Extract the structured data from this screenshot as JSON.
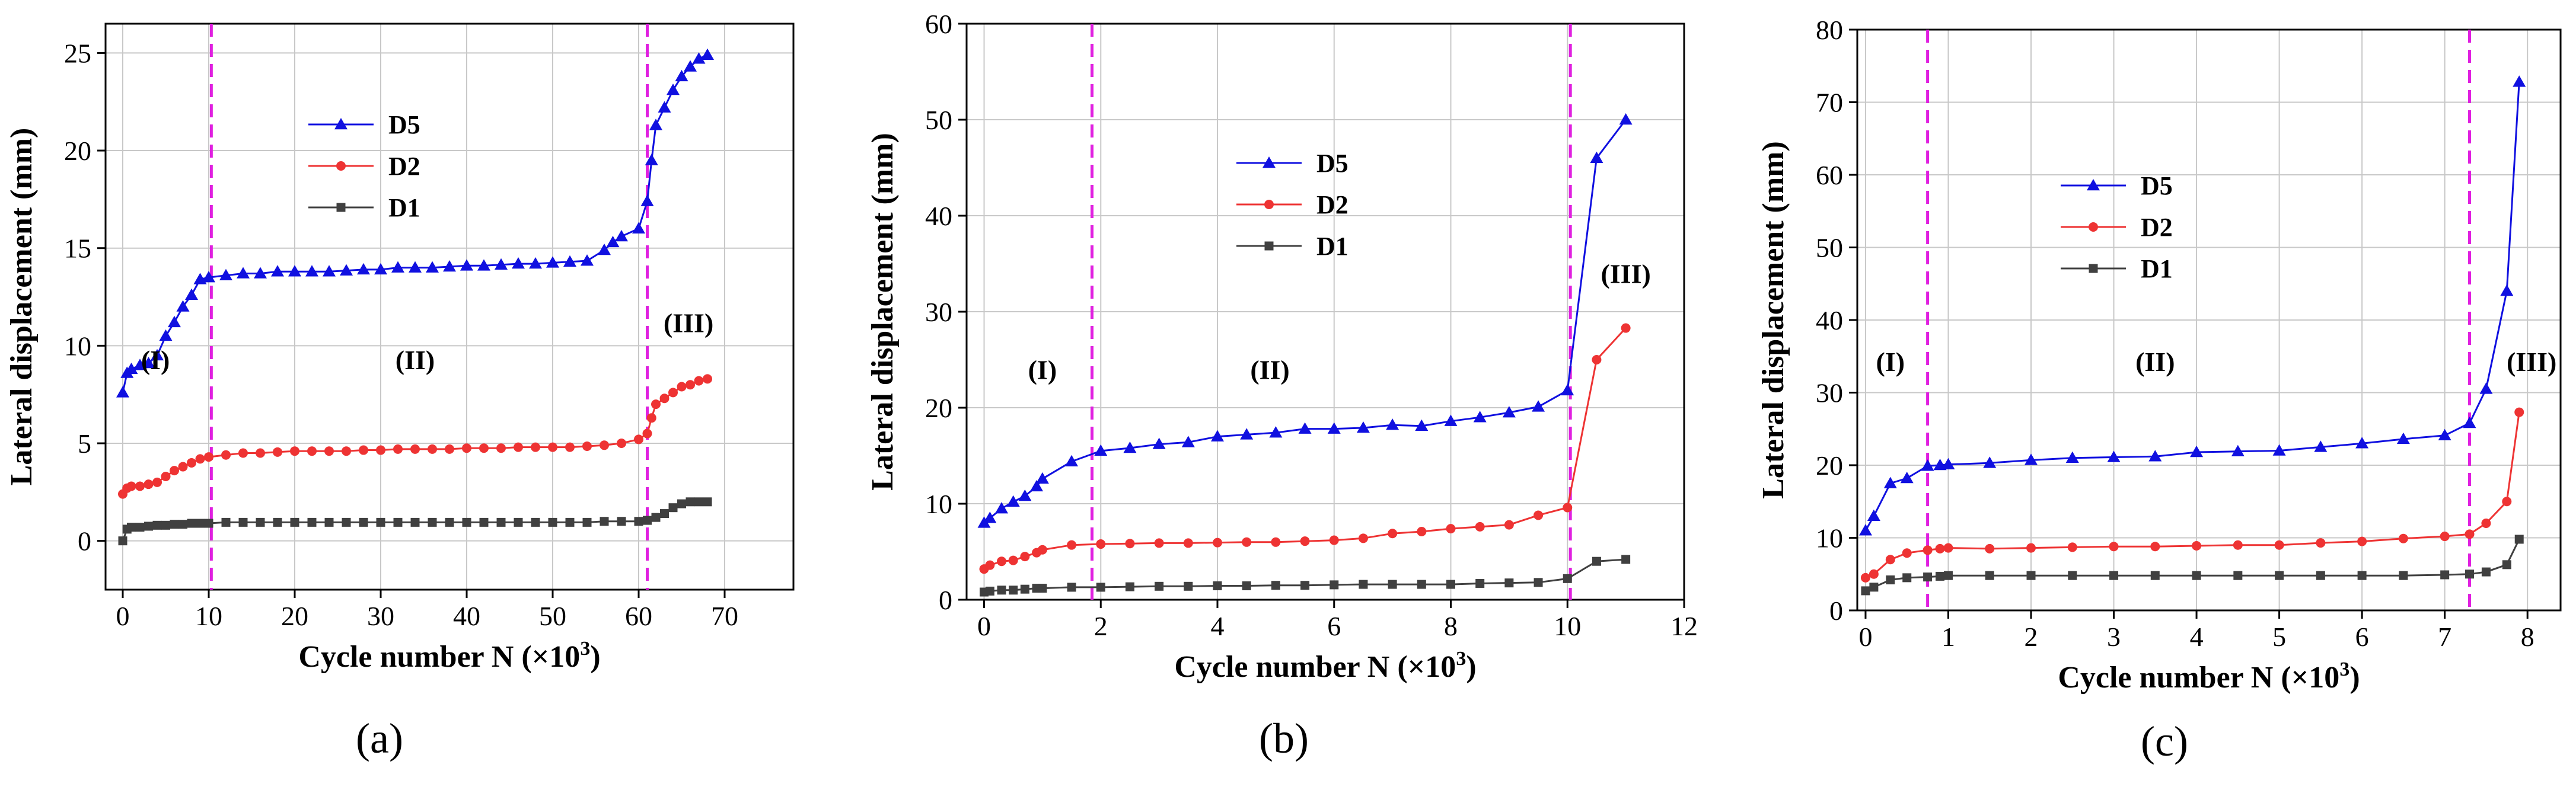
{
  "colors": {
    "D5": "#1010e0",
    "D2": "#ee3333",
    "D1": "#404040",
    "boundary": "#e020e0",
    "axis": "#000000",
    "grid": "#c8c8c8"
  },
  "chart_data": [
    {
      "type": "line",
      "panel": "(a)",
      "xlabel": "Cycle number N (×10",
      "xlabel_sup": "3",
      "xlabel_end": ")",
      "ylabel": "Lateral displacement (mm)",
      "xlim": [
        -2,
        78
      ],
      "ylim": [
        -2.5,
        26.5
      ],
      "xticks": [
        0,
        10,
        20,
        30,
        40,
        50,
        60,
        70
      ],
      "yticks": [
        0,
        5,
        10,
        15,
        20,
        25
      ],
      "grid": true,
      "boundaries": [
        10.3,
        61
      ],
      "phases": [
        {
          "label": "(I)",
          "x": 3.8,
          "y": 8.8
        },
        {
          "label": "(II)",
          "x": 34,
          "y": 8.8
        },
        {
          "label": "(III)",
          "x": 65.8,
          "y": 10.7
        }
      ],
      "legend_position": "upper-left-center",
      "series": [
        {
          "name": "D5",
          "marker": "triangle",
          "x": [
            0,
            0.5,
            1,
            2,
            3,
            4,
            5,
            6,
            7,
            8,
            9,
            10,
            12,
            14,
            16,
            18,
            20,
            22,
            24,
            26,
            28,
            30,
            32,
            34,
            36,
            38,
            40,
            42,
            44,
            46,
            48,
            50,
            52,
            54,
            56,
            57,
            58,
            60,
            61,
            61.5,
            62,
            63,
            64,
            65,
            66,
            67,
            68
          ],
          "y": [
            7.6,
            8.6,
            8.8,
            9.0,
            9.1,
            9.5,
            10.5,
            11.2,
            12.0,
            12.6,
            13.4,
            13.5,
            13.6,
            13.7,
            13.7,
            13.8,
            13.8,
            13.8,
            13.8,
            13.85,
            13.9,
            13.9,
            14.0,
            14.0,
            14.0,
            14.05,
            14.1,
            14.1,
            14.15,
            14.2,
            14.2,
            14.25,
            14.3,
            14.35,
            14.9,
            15.3,
            15.6,
            16.0,
            17.4,
            19.5,
            21.3,
            22.2,
            23.1,
            23.8,
            24.3,
            24.7,
            24.9
          ]
        },
        {
          "name": "D2",
          "marker": "circle",
          "x": [
            0,
            0.5,
            1,
            2,
            3,
            4,
            5,
            6,
            7,
            8,
            9,
            10,
            12,
            14,
            16,
            18,
            20,
            22,
            24,
            26,
            28,
            30,
            32,
            34,
            36,
            38,
            40,
            42,
            44,
            46,
            48,
            50,
            52,
            54,
            56,
            58,
            60,
            61,
            61.5,
            62,
            63,
            64,
            65,
            66,
            67,
            68
          ],
          "y": [
            2.4,
            2.7,
            2.8,
            2.8,
            2.9,
            3.0,
            3.3,
            3.6,
            3.8,
            4.0,
            4.2,
            4.3,
            4.4,
            4.5,
            4.5,
            4.55,
            4.6,
            4.6,
            4.6,
            4.6,
            4.65,
            4.65,
            4.7,
            4.7,
            4.7,
            4.7,
            4.75,
            4.75,
            4.75,
            4.8,
            4.8,
            4.8,
            4.8,
            4.85,
            4.9,
            5.0,
            5.2,
            5.5,
            6.3,
            7.0,
            7.3,
            7.6,
            7.9,
            8.0,
            8.2,
            8.3
          ]
        },
        {
          "name": "D1",
          "marker": "square",
          "x": [
            0,
            0.5,
            1,
            2,
            3,
            4,
            5,
            6,
            7,
            8,
            9,
            10,
            12,
            14,
            16,
            18,
            20,
            22,
            24,
            26,
            28,
            30,
            32,
            34,
            36,
            38,
            40,
            42,
            44,
            46,
            48,
            50,
            52,
            54,
            56,
            58,
            60,
            61,
            62,
            63,
            64,
            65,
            66,
            67,
            68
          ],
          "y": [
            0.0,
            0.6,
            0.7,
            0.7,
            0.75,
            0.8,
            0.8,
            0.85,
            0.85,
            0.9,
            0.9,
            0.9,
            0.95,
            0.95,
            0.95,
            0.95,
            0.95,
            0.95,
            0.95,
            0.95,
            0.95,
            0.95,
            0.95,
            0.95,
            0.95,
            0.95,
            0.95,
            0.95,
            0.95,
            0.95,
            0.95,
            0.95,
            0.95,
            0.95,
            1.0,
            1.0,
            1.0,
            1.05,
            1.2,
            1.4,
            1.7,
            1.9,
            2.0,
            2.0,
            2.0
          ]
        }
      ]
    },
    {
      "type": "line",
      "panel": "(b)",
      "xlabel": "Cycle number N (×10",
      "xlabel_sup": "3",
      "xlabel_end": ")",
      "ylabel": "Lateral displacement (mm)",
      "xlim": [
        -0.3,
        12
      ],
      "ylim": [
        0,
        60
      ],
      "xticks": [
        0,
        2,
        4,
        6,
        8,
        10,
        12
      ],
      "yticks": [
        0,
        10,
        20,
        30,
        40,
        50,
        60
      ],
      "grid": true,
      "boundaries": [
        1.85,
        10.05
      ],
      "phases": [
        {
          "label": "(I)",
          "x": 1.0,
          "y": 23
        },
        {
          "label": "(II)",
          "x": 4.9,
          "y": 23
        },
        {
          "label": "(III)",
          "x": 11.0,
          "y": 33
        }
      ],
      "legend_position": "upper-left-center",
      "series": [
        {
          "name": "D5",
          "marker": "triangle",
          "x": [
            0,
            0.1,
            0.3,
            0.5,
            0.7,
            0.9,
            1.0,
            1.5,
            2.0,
            2.5,
            3.0,
            3.5,
            4.0,
            4.5,
            5.0,
            5.5,
            6.0,
            6.5,
            7.0,
            7.5,
            8.0,
            8.5,
            9.0,
            9.5,
            10.0,
            10.5,
            11.0
          ],
          "y": [
            8.0,
            8.5,
            9.5,
            10.2,
            10.8,
            11.8,
            12.6,
            14.4,
            15.5,
            15.8,
            16.2,
            16.4,
            17.0,
            17.2,
            17.4,
            17.8,
            17.8,
            17.9,
            18.2,
            18.1,
            18.6,
            19.0,
            19.5,
            20.1,
            21.8,
            46.0,
            50.0
          ]
        },
        {
          "name": "D2",
          "marker": "circle",
          "x": [
            0,
            0.1,
            0.3,
            0.5,
            0.7,
            0.9,
            1.0,
            1.5,
            2.0,
            2.5,
            3.0,
            3.5,
            4.0,
            4.5,
            5.0,
            5.5,
            6.0,
            6.5,
            7.0,
            7.5,
            8.0,
            8.5,
            9.0,
            9.5,
            10.0,
            10.5,
            11.0
          ],
          "y": [
            3.2,
            3.6,
            4.0,
            4.1,
            4.5,
            4.9,
            5.2,
            5.7,
            5.8,
            5.85,
            5.9,
            5.9,
            5.95,
            6.0,
            6.0,
            6.1,
            6.2,
            6.4,
            6.9,
            7.1,
            7.4,
            7.6,
            7.8,
            8.8,
            9.6,
            25.0,
            28.3
          ]
        },
        {
          "name": "D1",
          "marker": "square",
          "x": [
            0,
            0.1,
            0.3,
            0.5,
            0.7,
            0.9,
            1.0,
            1.5,
            2.0,
            2.5,
            3.0,
            3.5,
            4.0,
            4.5,
            5.0,
            5.5,
            6.0,
            6.5,
            7.0,
            7.5,
            8.0,
            8.5,
            9.0,
            9.5,
            10.0,
            10.5,
            11.0
          ],
          "y": [
            0.8,
            0.9,
            1.0,
            1.0,
            1.1,
            1.2,
            1.2,
            1.3,
            1.3,
            1.35,
            1.4,
            1.4,
            1.45,
            1.45,
            1.5,
            1.5,
            1.55,
            1.6,
            1.6,
            1.6,
            1.6,
            1.7,
            1.75,
            1.8,
            2.2,
            4.0,
            4.2
          ]
        }
      ]
    },
    {
      "type": "line",
      "panel": "(c)",
      "xlabel": "Cycle number N (×10",
      "xlabel_sup": "3",
      "xlabel_end": ")",
      "ylabel": "Lateral displacement (mm)",
      "xlim": [
        -0.1,
        8.4
      ],
      "ylim": [
        0,
        80
      ],
      "xticks": [
        0,
        1,
        2,
        3,
        4,
        5,
        6,
        7,
        8
      ],
      "yticks": [
        0,
        10,
        20,
        30,
        40,
        50,
        60,
        70,
        80
      ],
      "grid": true,
      "boundaries": [
        0.75,
        7.3
      ],
      "phases": [
        {
          "label": "(I)",
          "x": 0.3,
          "y": 33
        },
        {
          "label": "(II)",
          "x": 3.5,
          "y": 33
        },
        {
          "label": "(III)",
          "x": 8.05,
          "y": 33
        }
      ],
      "legend_position": "upper-left-center",
      "series": [
        {
          "name": "D5",
          "marker": "triangle",
          "x": [
            0,
            0.1,
            0.3,
            0.5,
            0.75,
            0.9,
            1.0,
            1.5,
            2.0,
            2.5,
            3.0,
            3.5,
            4.0,
            4.5,
            5.0,
            5.5,
            6.0,
            6.5,
            7.0,
            7.3,
            7.5,
            7.75,
            7.9
          ],
          "y": [
            11.0,
            13.0,
            17.5,
            18.2,
            19.9,
            20.0,
            20.1,
            20.3,
            20.7,
            21.0,
            21.1,
            21.2,
            21.8,
            21.9,
            22.0,
            22.5,
            23.0,
            23.6,
            24.1,
            25.8,
            30.5,
            44.0,
            72.8
          ]
        },
        {
          "name": "D2",
          "marker": "circle",
          "x": [
            0,
            0.1,
            0.3,
            0.5,
            0.75,
            0.9,
            1.0,
            1.5,
            2.0,
            2.5,
            3.0,
            3.5,
            4.0,
            4.5,
            5.0,
            5.5,
            6.0,
            6.5,
            7.0,
            7.3,
            7.5,
            7.75,
            7.9
          ],
          "y": [
            4.5,
            5.0,
            7.0,
            7.9,
            8.3,
            8.5,
            8.6,
            8.5,
            8.6,
            8.7,
            8.8,
            8.8,
            8.9,
            9.0,
            9.0,
            9.3,
            9.5,
            9.9,
            10.2,
            10.5,
            12.0,
            15.0,
            27.3
          ]
        },
        {
          "name": "D1",
          "marker": "square",
          "x": [
            0,
            0.1,
            0.3,
            0.5,
            0.75,
            0.9,
            1.0,
            1.5,
            2.0,
            2.5,
            3.0,
            3.5,
            4.0,
            4.5,
            5.0,
            5.5,
            6.0,
            6.5,
            7.0,
            7.3,
            7.5,
            7.75,
            7.9
          ],
          "y": [
            2.7,
            3.2,
            4.2,
            4.5,
            4.6,
            4.7,
            4.8,
            4.8,
            4.8,
            4.8,
            4.8,
            4.8,
            4.8,
            4.8,
            4.8,
            4.8,
            4.8,
            4.8,
            4.9,
            5.0,
            5.3,
            6.3,
            9.8
          ]
        }
      ]
    }
  ]
}
